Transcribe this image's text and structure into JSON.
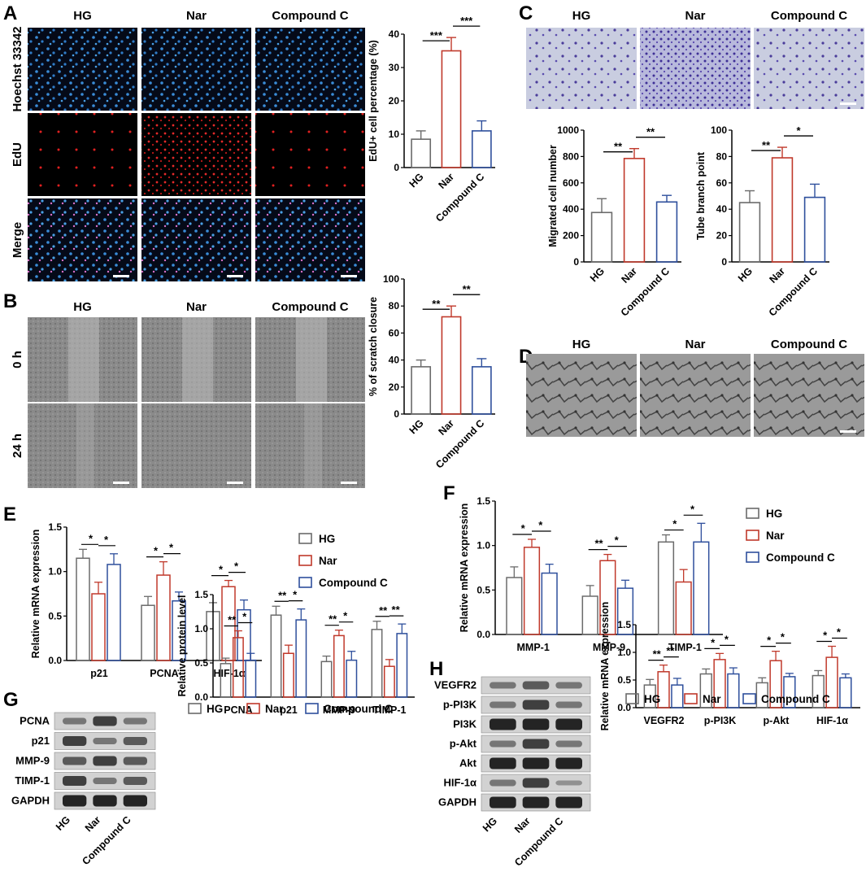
{
  "colors": {
    "HG": "#6b6b6b",
    "Nar": "#c0392b",
    "CompoundC": "#2e4f9c"
  },
  "panels": {
    "A": "A",
    "B": "B",
    "C": "C",
    "D": "D",
    "E": "E",
    "F": "F",
    "G": "G",
    "H": "H"
  },
  "groups": {
    "hg": "HG",
    "nar": "Nar",
    "cc": "Compound C"
  },
  "rows": {
    "hoechst": "Hoechst 33342",
    "edu": "EdU",
    "merge": "Merge",
    "h0": "0 h",
    "h24": "24 h"
  },
  "blots": {
    "G": [
      "PCNA",
      "p21",
      "MMP-9",
      "TIMP-1",
      "GAPDH"
    ],
    "H": [
      "VEGFR2",
      "p-PI3K",
      "PI3K",
      "p-Akt",
      "Akt",
      "HIF-1α",
      "GAPDH"
    ]
  },
  "chart_data": [
    {
      "id": "A",
      "type": "bar",
      "categories": [
        "HG",
        "Nar",
        "Compound C"
      ],
      "values": [
        8.5,
        35,
        11
      ],
      "errors": [
        2.5,
        4,
        3
      ],
      "ylabel": "EdU+ cell percentage (%)",
      "ylim": [
        0,
        40
      ],
      "yticks": [
        0,
        10,
        20,
        30,
        40
      ],
      "sig": [
        {
          "from": 0,
          "to": 1,
          "label": "***"
        },
        {
          "from": 1,
          "to": 2,
          "label": "***"
        }
      ]
    },
    {
      "id": "B",
      "type": "bar",
      "categories": [
        "HG",
        "Nar",
        "Compound C"
      ],
      "values": [
        35,
        72,
        35
      ],
      "errors": [
        5,
        8,
        6
      ],
      "ylabel": "% of scratch closure",
      "ylim": [
        0,
        100
      ],
      "yticks": [
        0,
        20,
        40,
        60,
        80,
        100
      ],
      "sig": [
        {
          "from": 0,
          "to": 1,
          "label": "**"
        },
        {
          "from": 1,
          "to": 2,
          "label": "**"
        }
      ]
    },
    {
      "id": "C1",
      "type": "bar",
      "categories": [
        "HG",
        "Nar",
        "Compound C"
      ],
      "values": [
        375,
        785,
        455
      ],
      "errors": [
        105,
        75,
        50
      ],
      "ylabel": "Migrated  cell number",
      "ylim": [
        0,
        1000
      ],
      "yticks": [
        0,
        200,
        400,
        600,
        800,
        1000
      ],
      "sig": [
        {
          "from": 0,
          "to": 1,
          "label": "**"
        },
        {
          "from": 1,
          "to": 2,
          "label": "**"
        }
      ]
    },
    {
      "id": "C2",
      "type": "bar",
      "categories": [
        "HG",
        "Nar",
        "Compound C"
      ],
      "values": [
        45,
        79,
        49
      ],
      "errors": [
        9,
        8,
        10
      ],
      "ylabel": "Tube branch point",
      "ylim": [
        0,
        100
      ],
      "yticks": [
        0,
        20,
        40,
        60,
        80,
        100
      ],
      "sig": [
        {
          "from": 0,
          "to": 1,
          "label": "**"
        },
        {
          "from": 1,
          "to": 2,
          "label": "*"
        }
      ]
    },
    {
      "id": "E",
      "type": "grouped-bar",
      "categories": [
        "p21",
        "PCNA",
        "HIF-1α"
      ],
      "ylabel": "Relative mRNA expression",
      "ylim": [
        0,
        1.5
      ],
      "yticks": [
        "0.0",
        "0.5",
        "1.0",
        "1.5"
      ],
      "series": [
        {
          "name": "HG",
          "values": [
            1.15,
            0.62,
            0.55
          ],
          "errors": [
            0.1,
            0.1,
            0.1
          ]
        },
        {
          "name": "Nar",
          "values": [
            0.75,
            0.96,
            0.83
          ],
          "errors": [
            0.13,
            0.15,
            0.07
          ]
        },
        {
          "name": "Compound C",
          "values": [
            1.08,
            0.67,
            0.57
          ],
          "errors": [
            0.12,
            0.1,
            0.11
          ]
        }
      ],
      "sig": [
        {
          "cat": 0,
          "a": "*",
          "b": "*"
        },
        {
          "cat": 1,
          "a": "*",
          "b": "*"
        },
        {
          "cat": 2,
          "a": "*",
          "b": "*"
        }
      ],
      "legend": [
        "HG",
        "Nar",
        "Compound C"
      ]
    },
    {
      "id": "F",
      "type": "grouped-bar",
      "categories": [
        "MMP-1",
        "MMP-9",
        "TIMP-1"
      ],
      "ylabel": "Relative mRNA expression",
      "ylim": [
        0,
        1.5
      ],
      "yticks": [
        "0.0",
        "0.5",
        "1.0",
        "1.5"
      ],
      "series": [
        {
          "name": "HG",
          "values": [
            0.64,
            0.43,
            1.04
          ],
          "errors": [
            0.12,
            0.12,
            0.08
          ]
        },
        {
          "name": "Nar",
          "values": [
            0.98,
            0.83,
            0.59
          ],
          "errors": [
            0.09,
            0.07,
            0.14
          ]
        },
        {
          "name": "Compound C",
          "values": [
            0.69,
            0.52,
            1.04
          ],
          "errors": [
            0.1,
            0.09,
            0.21
          ]
        }
      ],
      "sig": [
        {
          "cat": 0,
          "a": "*",
          "b": "*"
        },
        {
          "cat": 1,
          "a": "**",
          "b": "*"
        },
        {
          "cat": 2,
          "a": "*",
          "b": "*"
        }
      ],
      "legend": [
        "HG",
        "Nar",
        "Compound C"
      ]
    },
    {
      "id": "G",
      "type": "grouped-bar",
      "categories": [
        "PCNA",
        "p21",
        "MMP-9",
        "TIMP-1"
      ],
      "ylabel": "Relative protein level",
      "ylim": [
        0,
        1.5
      ],
      "yticks": [
        "0.0",
        "0.5",
        "1.0",
        "1.5"
      ],
      "series": [
        {
          "name": "HG",
          "values": [
            0.49,
            1.2,
            0.52,
            0.99
          ],
          "errors": [
            0.08,
            0.13,
            0.08,
            0.12
          ]
        },
        {
          "name": "Nar",
          "values": [
            0.87,
            0.64,
            0.9,
            0.45
          ],
          "errors": [
            0.1,
            0.12,
            0.08,
            0.1
          ]
        },
        {
          "name": "Compound C",
          "values": [
            0.54,
            1.13,
            0.54,
            0.93
          ],
          "errors": [
            0.1,
            0.16,
            0.13,
            0.14
          ]
        }
      ],
      "sig": [
        {
          "cat": 0,
          "a": "**",
          "b": "*"
        },
        {
          "cat": 1,
          "a": "**",
          "b": "*"
        },
        {
          "cat": 2,
          "a": "**",
          "b": "*"
        },
        {
          "cat": 3,
          "a": "**",
          "b": "**"
        }
      ],
      "legend": [
        "HG",
        "Nar",
        "Compound C"
      ]
    },
    {
      "id": "H",
      "type": "grouped-bar",
      "categories": [
        "VEGFR2",
        "p-PI3K",
        "p-Akt",
        "HIF-1α"
      ],
      "ylabel": "Relative mRNA expression",
      "ylim": [
        0,
        1.5
      ],
      "yticks": [
        "0.0",
        "0.5",
        "1.0",
        "1.5"
      ],
      "series": [
        {
          "name": "HG",
          "values": [
            0.41,
            0.61,
            0.45,
            0.58
          ],
          "errors": [
            0.1,
            0.09,
            0.09,
            0.09
          ]
        },
        {
          "name": "Nar",
          "values": [
            0.65,
            0.87,
            0.85,
            0.91
          ],
          "errors": [
            0.12,
            0.11,
            0.17,
            0.2
          ]
        },
        {
          "name": "Compound C",
          "values": [
            0.41,
            0.61,
            0.56,
            0.54
          ],
          "errors": [
            0.12,
            0.11,
            0.06,
            0.07
          ]
        }
      ],
      "sig": [
        {
          "cat": 0,
          "a": "**",
          "b": "**"
        },
        {
          "cat": 1,
          "a": "*",
          "b": "*"
        },
        {
          "cat": 2,
          "a": "*",
          "b": "*"
        },
        {
          "cat": 3,
          "a": "*",
          "b": "*"
        }
      ],
      "legend": [
        "HG",
        "Nar",
        "Compound C"
      ]
    }
  ]
}
